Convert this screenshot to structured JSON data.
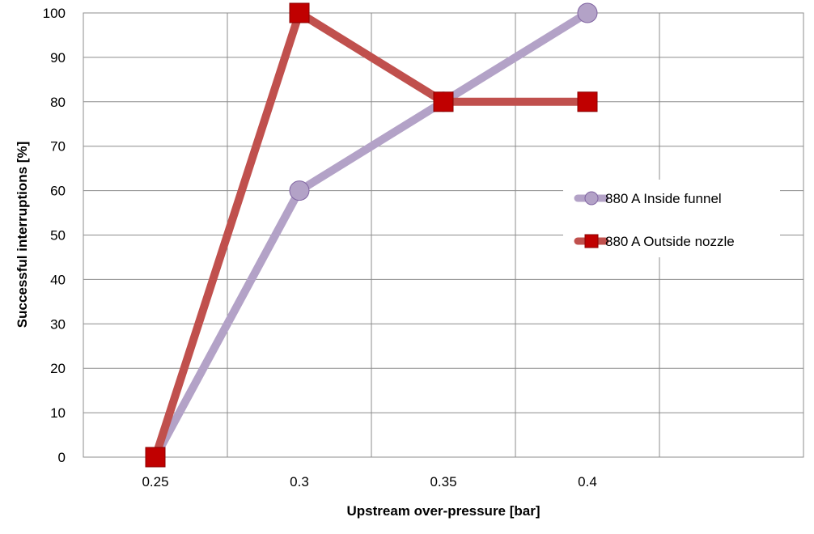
{
  "chart_data": {
    "type": "line",
    "xlabel": "Upstream over-pressure [bar]",
    "ylabel": "Successful interruptions [%]",
    "x": [
      0.25,
      0.3,
      0.35,
      0.4
    ],
    "x_tick_labels": [
      "0.25",
      "0.3",
      "0.35",
      "0.4"
    ],
    "ylim": [
      0,
      100
    ],
    "y_ticks": [
      0,
      10,
      20,
      30,
      40,
      50,
      60,
      70,
      80,
      90,
      100
    ],
    "grid": true,
    "legend_position": "right",
    "series": [
      {
        "name": "880 A Inside funnel",
        "values": [
          0,
          60,
          80,
          100
        ],
        "color": "#b3a2c7",
        "marker": "circle"
      },
      {
        "name": "880 A Outside nozzle",
        "values": [
          0,
          100,
          80,
          80
        ],
        "color": "#c0504d",
        "marker": "square"
      }
    ]
  }
}
